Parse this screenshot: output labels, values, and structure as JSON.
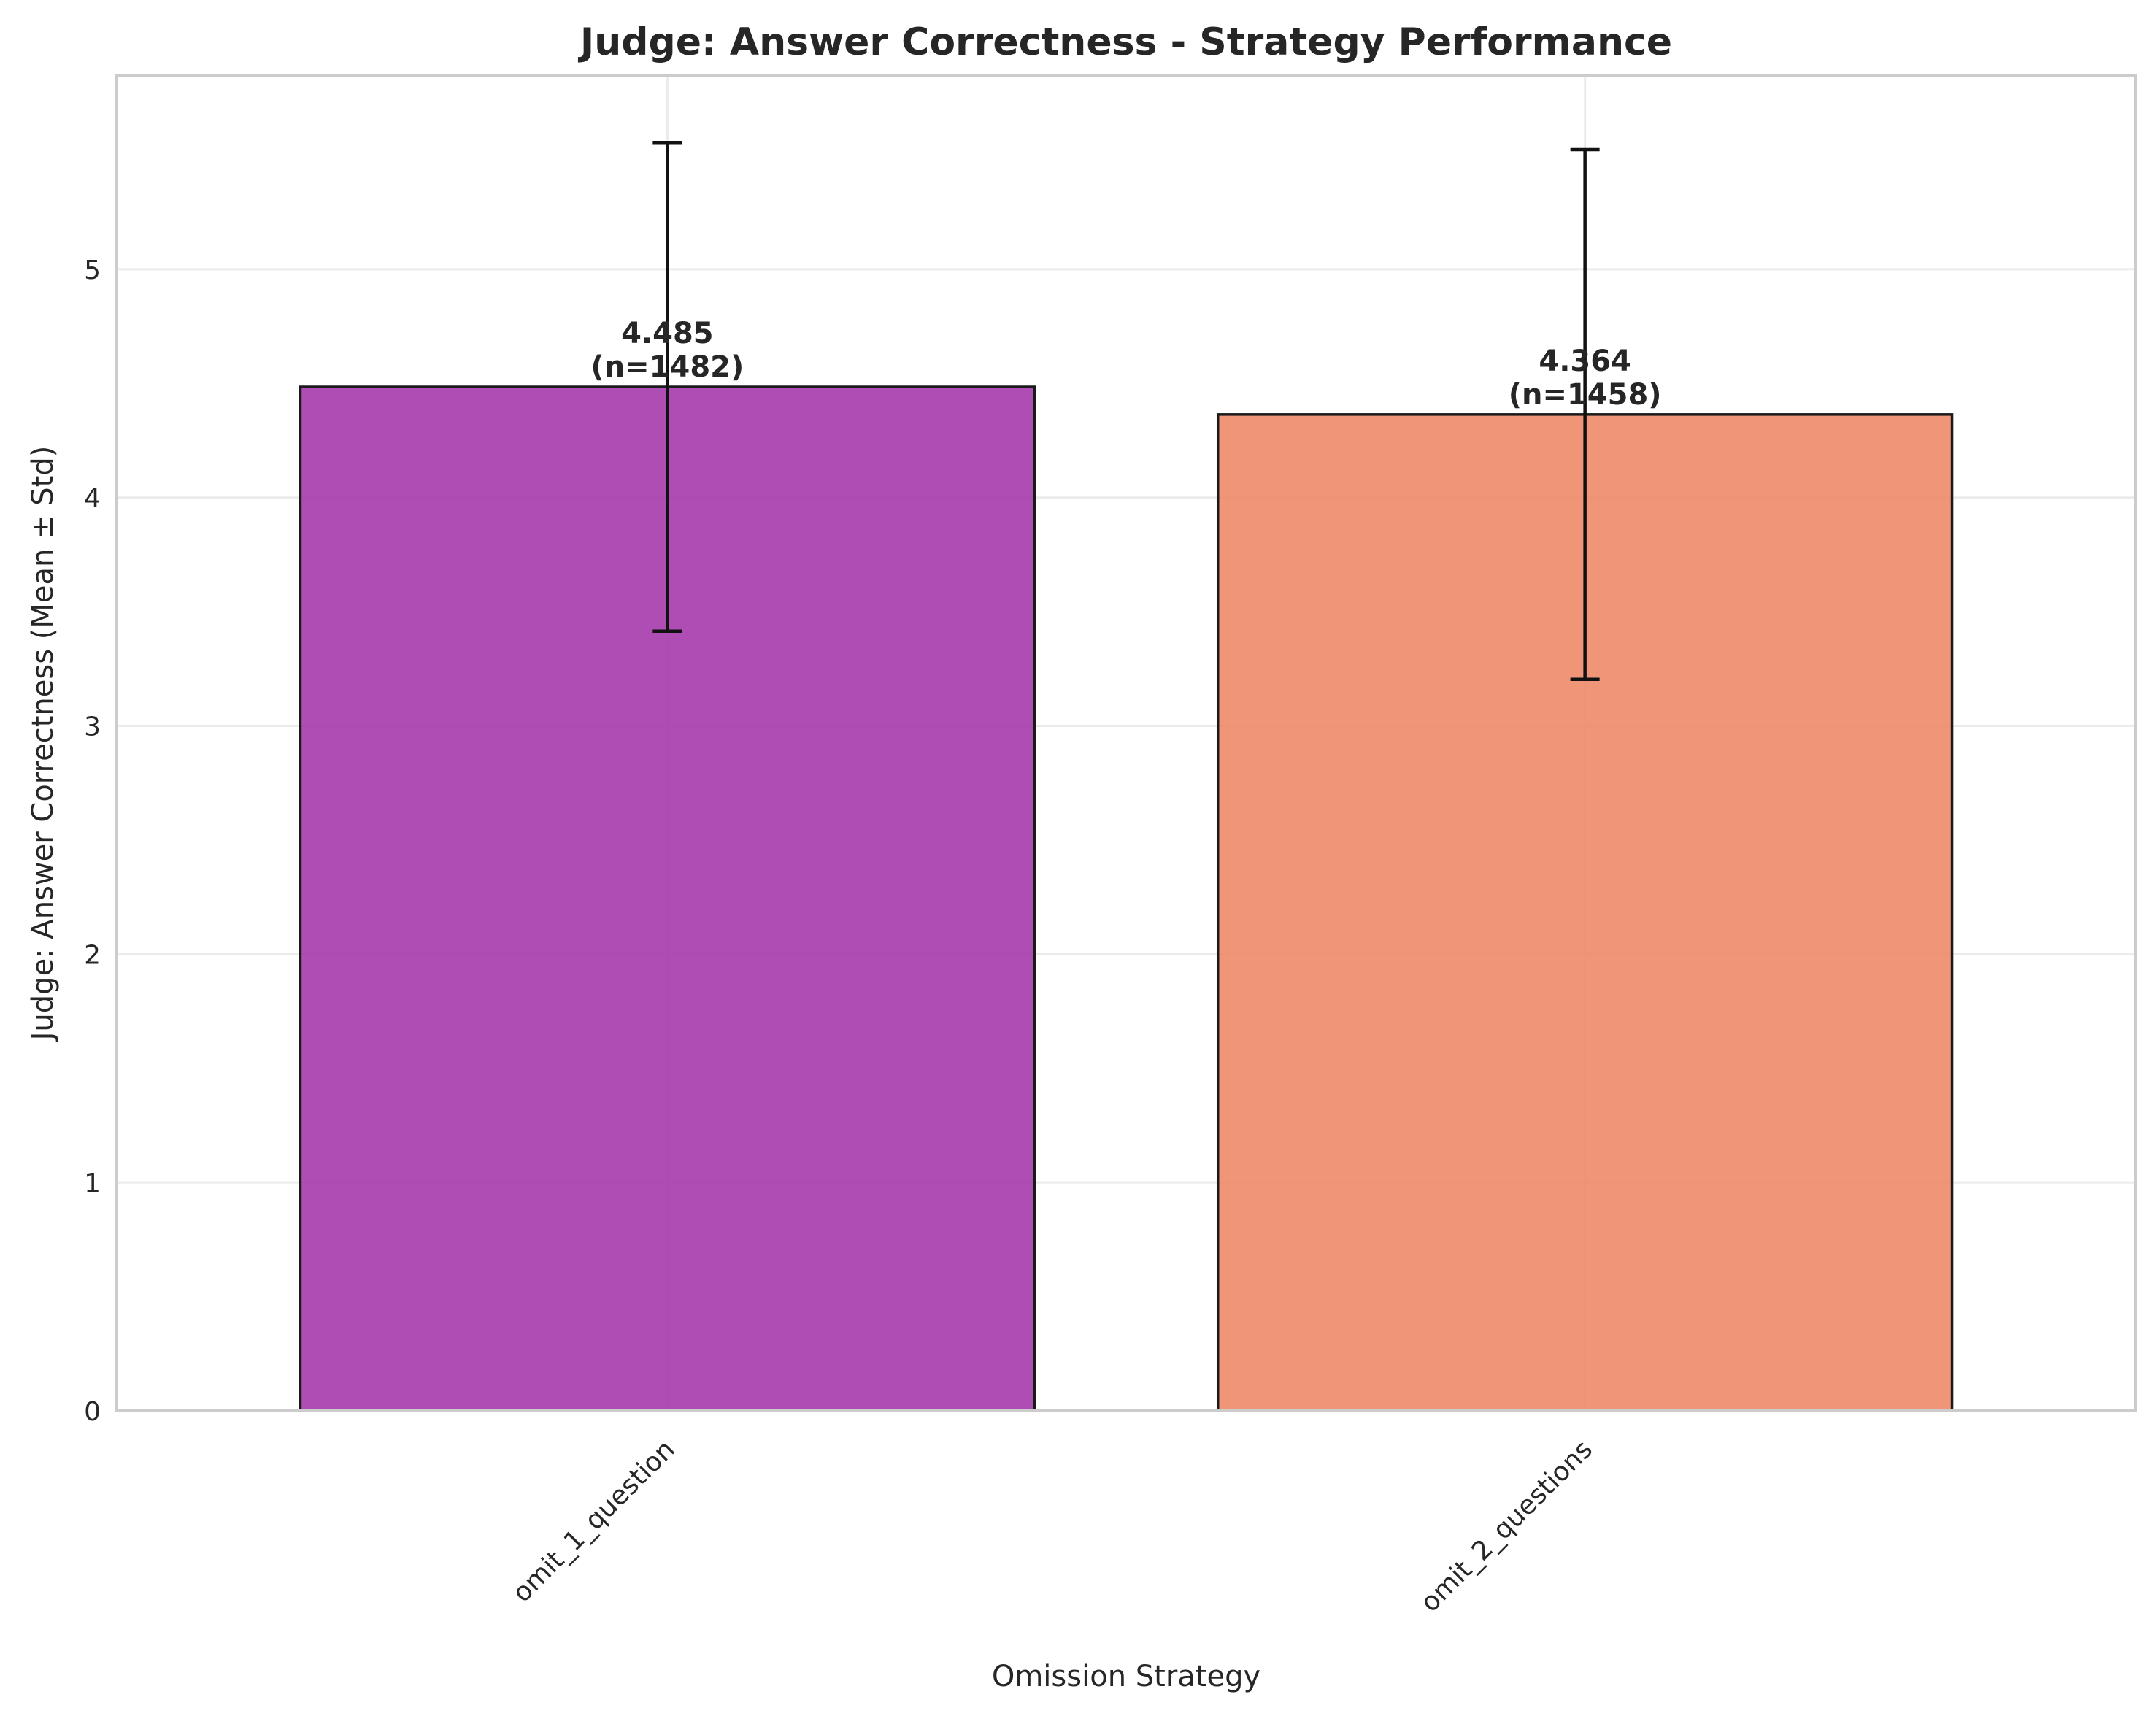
{
  "chart_data": {
    "type": "bar",
    "title": "Judge: Answer Correctness - Strategy Performance",
    "xlabel": "Omission Strategy",
    "ylabel": "Judge: Answer Correctness (Mean ± Std)",
    "categories": [
      "omit_1_question",
      "omit_2_questions"
    ],
    "values": [
      4.485,
      4.364
    ],
    "std": [
      1.07,
      1.16
    ],
    "n": [
      1482,
      1458
    ],
    "data_labels": [
      [
        "4.485",
        "(n=1482)"
      ],
      [
        "4.364",
        "(n=1458)"
      ]
    ],
    "colors": [
      "#a53aab",
      "#ef8a6a"
    ],
    "ylim": [
      0,
      5.85
    ],
    "yticks": [
      0,
      1,
      2,
      3,
      4,
      5
    ],
    "grid": true
  }
}
